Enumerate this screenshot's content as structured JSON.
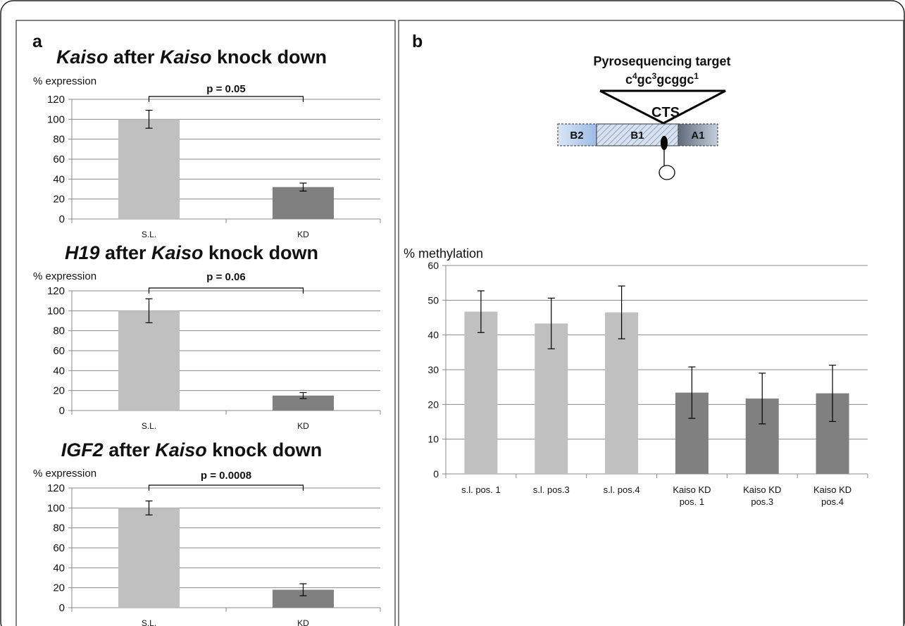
{
  "panels": {
    "a": {
      "letter": "a"
    },
    "b": {
      "letter": "b"
    }
  },
  "chart_data": [
    {
      "type": "bar",
      "title": "Kaiso after Kaiso knock down",
      "title_parts": [
        {
          "text": "Kaiso",
          "italic": true
        },
        {
          "text": " after ",
          "italic": false
        },
        {
          "text": "Kaiso",
          "italic": true
        },
        {
          "text": " knock down",
          "italic": false
        }
      ],
      "ylabel": "% expression",
      "xlabel": "",
      "categories": [
        "S.L.",
        "KD"
      ],
      "values": [
        100,
        32
      ],
      "errors": [
        9,
        4
      ],
      "bar_colors": [
        "#c0c0c0",
        "#808080"
      ],
      "ylim": [
        0,
        120
      ],
      "yticks": [
        0,
        20,
        40,
        60,
        80,
        100,
        120
      ],
      "grid": true,
      "annotation": "p = 0.05"
    },
    {
      "type": "bar",
      "title": "H19 after Kaiso knock down",
      "title_parts": [
        {
          "text": "H19",
          "italic": true
        },
        {
          "text": " after ",
          "italic": false
        },
        {
          "text": "Kaiso",
          "italic": true
        },
        {
          "text": " knock down",
          "italic": false
        }
      ],
      "ylabel": "% expression",
      "xlabel": "",
      "categories": [
        "S.L.",
        "KD"
      ],
      "values": [
        100,
        15
      ],
      "errors": [
        12,
        3
      ],
      "bar_colors": [
        "#c0c0c0",
        "#808080"
      ],
      "ylim": [
        0,
        120
      ],
      "yticks": [
        0,
        20,
        40,
        60,
        80,
        100,
        120
      ],
      "grid": true,
      "annotation": "p = 0.06"
    },
    {
      "type": "bar",
      "title": "IGF2 after Kaiso knock down",
      "title_parts": [
        {
          "text": "IGF2",
          "italic": true
        },
        {
          "text": " after ",
          "italic": false
        },
        {
          "text": "Kaiso",
          "italic": true
        },
        {
          "text": " knock down",
          "italic": false
        }
      ],
      "ylabel": "% expression",
      "xlabel": "",
      "categories": [
        "S.L.",
        "KD"
      ],
      "values": [
        100,
        18
      ],
      "errors": [
        7,
        6
      ],
      "bar_colors": [
        "#c0c0c0",
        "#808080"
      ],
      "ylim": [
        0,
        120
      ],
      "yticks": [
        0,
        20,
        40,
        60,
        80,
        100,
        120
      ],
      "grid": true,
      "annotation": "p = 0.0008"
    },
    {
      "type": "bar",
      "title": "",
      "ylabel": "% methylation",
      "xlabel": "",
      "categories": [
        [
          "s.l. pos. 1"
        ],
        [
          "s.l. pos.3"
        ],
        [
          "s.l. pos.4"
        ],
        [
          "Kaiso KD",
          "pos. 1"
        ],
        [
          "Kaiso KD",
          "pos.3"
        ],
        [
          "Kaiso KD",
          "pos.4"
        ]
      ],
      "values": [
        46.7,
        43.3,
        46.5,
        23.4,
        21.7,
        23.2
      ],
      "errors": [
        6,
        7.3,
        7.6,
        7.4,
        7.3,
        8.1
      ],
      "bar_colors": [
        "#c0c0c0",
        "#c0c0c0",
        "#c0c0c0",
        "#808080",
        "#808080",
        "#808080"
      ],
      "ylim": [
        0,
        60
      ],
      "yticks": [
        0,
        10,
        20,
        30,
        40,
        50,
        60
      ],
      "grid": true
    }
  ],
  "diagram": {
    "title": "Pyrosequencing target",
    "sequence": [
      {
        "t": "c",
        "sup": false
      },
      {
        "t": "4",
        "sup": true
      },
      {
        "t": "gc",
        "sup": false
      },
      {
        "t": "3",
        "sup": true
      },
      {
        "t": "gcggc",
        "sup": false
      },
      {
        "t": "1",
        "sup": true
      }
    ],
    "cts_label": "CTS",
    "segments": [
      {
        "label": "B2",
        "color": "#a9c4e4"
      },
      {
        "label": "B1",
        "color": "#d0deef"
      },
      {
        "label": "A1",
        "color": "#7f8c9b"
      }
    ]
  }
}
